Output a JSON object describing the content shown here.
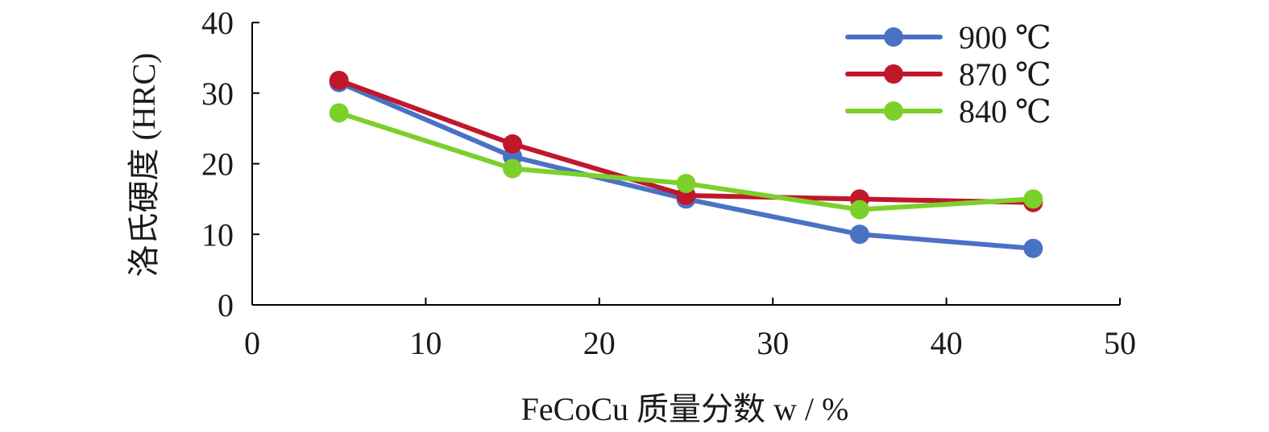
{
  "chart_data": {
    "type": "line",
    "xlabel": "FeCoCu 质量分数 w / %",
    "ylabel": "洛氏硬度 (HRC)",
    "xlim": [
      0,
      50
    ],
    "ylim": [
      0,
      40
    ],
    "xticks": [
      0,
      10,
      20,
      30,
      40,
      50
    ],
    "yticks": [
      0,
      10,
      20,
      30,
      40
    ],
    "grid": false,
    "legend_position": "top-right",
    "x": [
      5,
      15,
      25,
      35,
      45
    ],
    "series": [
      {
        "name": "900 ℃",
        "color": "#4a72c4",
        "values": [
          31.5,
          21,
          15,
          10,
          8
        ]
      },
      {
        "name": "870 ℃",
        "color": "#c0172b",
        "values": [
          31.8,
          22.8,
          15.5,
          15,
          14.5
        ]
      },
      {
        "name": "840 ℃",
        "color": "#7cd02a",
        "values": [
          27.2,
          19.3,
          17.2,
          13.5,
          15
        ]
      }
    ]
  }
}
